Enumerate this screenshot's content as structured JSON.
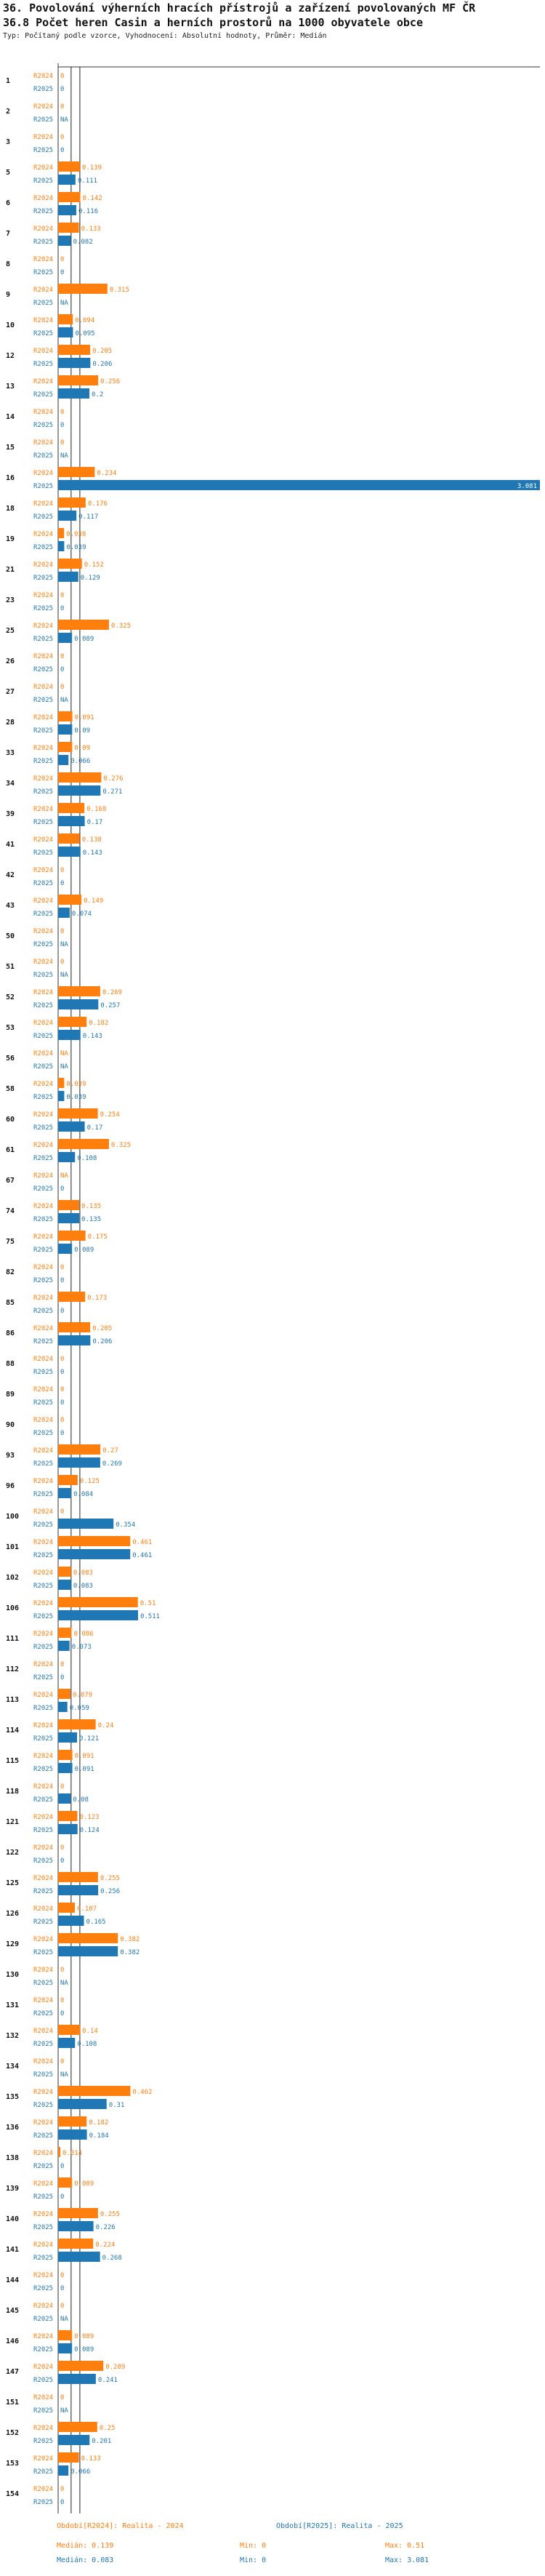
{
  "title": "36. Povolování výherních hracích přístrojů a zařízení povolovaných MF ČR",
  "subtitle": "36.8 Počet heren Casin a herních prostorů na 1000 obyvatele obce",
  "info": "Typ: Počítaný podle vzorce, Vyhodnocení: Absolutní hodnoty, Průměr: Medián",
  "colors": {
    "r2024": "#ff7f0e",
    "r2025": "#1f77b4",
    "axis": "#333333",
    "median": "#222222"
  },
  "chart_data": {
    "type": "bar",
    "orientation": "horizontal",
    "xlim": [
      0,
      3.081
    ],
    "axis_tick_label": "0",
    "series_labels": [
      "R2024",
      "R2025"
    ],
    "categories": [
      "1",
      "2",
      "3",
      "5",
      "6",
      "7",
      "8",
      "9",
      "10",
      "12",
      "13",
      "14",
      "15",
      "16",
      "18",
      "19",
      "21",
      "23",
      "25",
      "26",
      "27",
      "28",
      "33",
      "34",
      "39",
      "41",
      "42",
      "43",
      "50",
      "51",
      "52",
      "53",
      "56",
      "58",
      "60",
      "61",
      "67",
      "74",
      "75",
      "82",
      "85",
      "86",
      "88",
      "89",
      "90",
      "93",
      "96",
      "100",
      "101",
      "102",
      "106",
      "111",
      "112",
      "113",
      "114",
      "115",
      "118",
      "121",
      "122",
      "125",
      "126",
      "129",
      "130",
      "131",
      "132",
      "134",
      "135",
      "136",
      "138",
      "139",
      "140",
      "141",
      "144",
      "145",
      "146",
      "147",
      "151",
      "152",
      "153",
      "154"
    ],
    "r2024": [
      0,
      0,
      0,
      0.139,
      0.142,
      0.133,
      0,
      0.315,
      0.094,
      0.205,
      0.256,
      0,
      0,
      0.234,
      0.176,
      0.038,
      0.152,
      0,
      0.325,
      0,
      0,
      0.091,
      0.09,
      0.276,
      0.168,
      0.138,
      0,
      0.149,
      0,
      0,
      0.269,
      0.182,
      null,
      0.039,
      0.254,
      0.325,
      null,
      0.135,
      0.175,
      0,
      0.173,
      0.205,
      0,
      0,
      0,
      0.27,
      0.125,
      0,
      0.461,
      0.083,
      0.51,
      0.086,
      0,
      0.079,
      0.24,
      0.091,
      0,
      0.123,
      0,
      0.255,
      0.107,
      0.382,
      0,
      0,
      0.14,
      0,
      0.462,
      0.182,
      0.014,
      0.089,
      0.255,
      0.224,
      0,
      0,
      0.089,
      0.289,
      0,
      0.25,
      0.133,
      0
    ],
    "r2025": [
      0,
      null,
      0,
      0.111,
      0.116,
      0.082,
      0,
      null,
      0.095,
      0.206,
      0.2,
      0,
      null,
      3.081,
      0.117,
      0.039,
      0.129,
      0,
      0.089,
      0,
      null,
      0.09,
      0.066,
      0.271,
      0.17,
      0.143,
      0,
      0.074,
      null,
      null,
      0.257,
      0.143,
      null,
      0.039,
      0.17,
      0.108,
      0,
      0.135,
      0.089,
      0,
      0,
      0.206,
      0,
      0,
      0,
      0.269,
      0.084,
      0.354,
      0.461,
      0.083,
      0.511,
      0.073,
      0,
      0.059,
      0.121,
      0.091,
      0.08,
      0.124,
      0,
      0.256,
      0.165,
      0.382,
      null,
      0,
      0.108,
      null,
      0.31,
      0.184,
      0,
      0,
      0.226,
      0.268,
      0,
      null,
      0.089,
      0.241,
      null,
      0.201,
      0.066,
      0
    ],
    "medians": {
      "r2024": 0.139,
      "r2025": 0.083
    }
  },
  "footer": {
    "period_2024": "Období[R2024]: Realita - 2024",
    "period_2025": "Období[R2025]: Realita - 2025",
    "median_2024": "Medián: 0.139",
    "min_2024": "Min: 0",
    "max_2024": "Max: 0.51",
    "median_2025": "Medián: 0.083",
    "min_2025": "Min: 0",
    "max_2025": "Max: 3.081"
  }
}
